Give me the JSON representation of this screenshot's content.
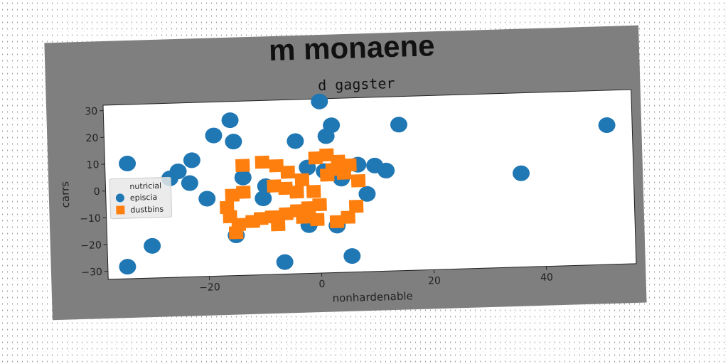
{
  "figure": {
    "suptitle": "m monaene",
    "background": "#7f7f7f",
    "plot_background": "#ffffff"
  },
  "chart_data": {
    "type": "scatter",
    "title": "d gagster",
    "xlabel": "nonhardenable",
    "ylabel": "carrs",
    "xlim": [
      -38,
      56
    ],
    "ylim": [
      -33,
      32
    ],
    "xticks": [
      -20,
      0,
      20,
      40
    ],
    "yticks": [
      -30,
      -20,
      -10,
      0,
      10,
      20,
      30
    ],
    "grid": false,
    "legend": {
      "title": "nutricial",
      "placement": "center-left"
    },
    "series": [
      {
        "name": "episcia",
        "color": "#1f77b4",
        "marker": "circle",
        "points": [
          [
            0.5,
            31
          ],
          [
            -15.5,
            25
          ],
          [
            -18.5,
            19.5
          ],
          [
            -15,
            17
          ],
          [
            -4,
            16.5
          ],
          [
            2.5,
            22
          ],
          [
            1.5,
            18
          ],
          [
            14.5,
            21.5
          ],
          [
            51.5,
            19
          ],
          [
            -34,
            10
          ],
          [
            -22.5,
            10.5
          ],
          [
            -25,
            6.5
          ],
          [
            -26.5,
            4
          ],
          [
            -23,
            2
          ],
          [
            -13.5,
            3.5
          ],
          [
            -9.5,
            0
          ],
          [
            -2,
            6.5
          ],
          [
            7,
            7
          ],
          [
            10,
            6.5
          ],
          [
            12,
            4.5
          ],
          [
            4,
            2
          ],
          [
            1,
            5
          ],
          [
            36,
            2
          ],
          [
            -20,
            -4
          ],
          [
            -10,
            -4.5
          ],
          [
            8.5,
            -4
          ],
          [
            -2,
            -15
          ],
          [
            3,
            -15.5
          ],
          [
            -15,
            -18
          ],
          [
            -30,
            -21
          ],
          [
            -34.5,
            -28.5
          ],
          [
            -6.5,
            -28.5
          ],
          [
            5.5,
            -27
          ]
        ]
      },
      {
        "name": "dustbins",
        "color": "#ff7f0e",
        "marker": "square",
        "points": [
          [
            -13.5,
            8
          ],
          [
            -10,
            9
          ],
          [
            -7.5,
            7.5
          ],
          [
            -5.5,
            5
          ],
          [
            -0.5,
            10
          ],
          [
            1.5,
            11
          ],
          [
            3.5,
            8.5
          ],
          [
            5.5,
            7
          ],
          [
            2.5,
            5.5
          ],
          [
            4.5,
            4
          ],
          [
            7,
            1
          ],
          [
            1.5,
            3.5
          ],
          [
            -3,
            2
          ],
          [
            -8,
            0
          ],
          [
            -6,
            -1
          ],
          [
            -4,
            -2.5
          ],
          [
            -1,
            -2.5
          ],
          [
            -15.5,
            -3
          ],
          [
            -13.5,
            -2
          ],
          [
            -16.5,
            -7.5
          ],
          [
            -16,
            -11
          ],
          [
            -14.5,
            -14
          ],
          [
            -12,
            -13
          ],
          [
            -10.5,
            -12
          ],
          [
            -8.5,
            -11.5
          ],
          [
            -6,
            -10.5
          ],
          [
            -4,
            -9.5
          ],
          [
            -2,
            -8.5
          ],
          [
            0,
            -7.5
          ],
          [
            -3,
            -12
          ],
          [
            -0.5,
            -13
          ],
          [
            3,
            -14
          ],
          [
            5,
            -12.5
          ],
          [
            6.5,
            -8.5
          ],
          [
            -7.5,
            -14.5
          ],
          [
            -15,
            -17
          ]
        ]
      }
    ]
  }
}
